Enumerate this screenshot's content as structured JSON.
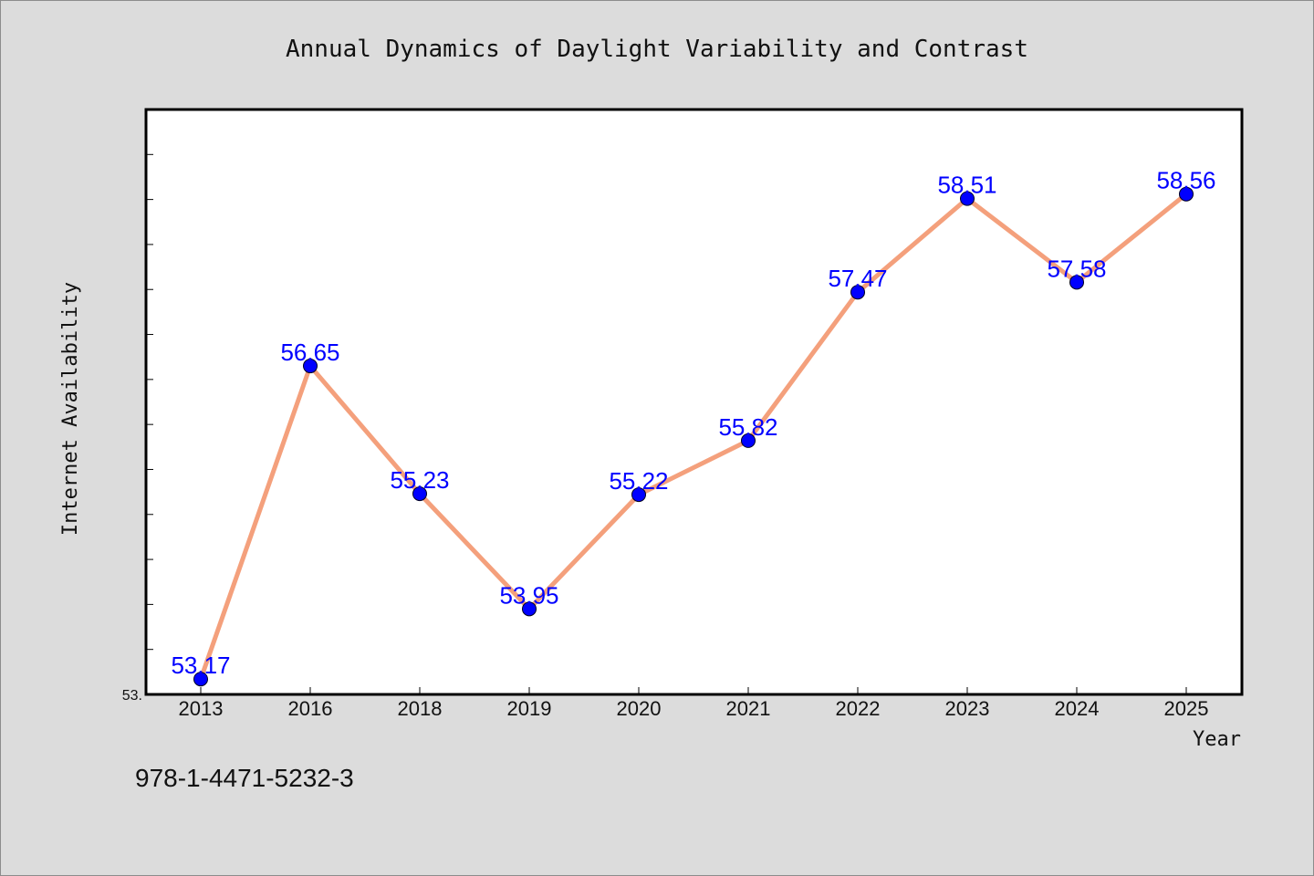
{
  "chart_data": {
    "type": "line",
    "title": "Annual Dynamics of Daylight Variability and Contrast",
    "xlabel": "Year",
    "ylabel": "Internet Availability",
    "categories": [
      "2013",
      "2016",
      "2018",
      "2019",
      "2020",
      "2021",
      "2022",
      "2023",
      "2024",
      "2025"
    ],
    "series": [
      {
        "values": [
          53.17,
          56.65,
          55.23,
          53.95,
          55.22,
          55.82,
          57.47,
          58.51,
          57.58,
          58.56
        ],
        "data_labels": [
          "53.17",
          "56.65",
          "55.23",
          "53.95",
          "55.22",
          "55.82",
          "57.47",
          "58.51",
          "57.58",
          "58.56"
        ]
      }
    ],
    "ylim": [
      53.0,
      59.5
    ],
    "y_tick_labels": [
      "53."
    ],
    "y_minor_tick_step": 0.5,
    "grid": false,
    "legend": "none",
    "colors": {
      "line": "#f4a07c",
      "marker": "#0000ff",
      "data_label": "#0000ff",
      "background": "#dcdcdc",
      "plot_background": "#ffffff"
    }
  },
  "footnote": "978-1-4471-5232-3"
}
